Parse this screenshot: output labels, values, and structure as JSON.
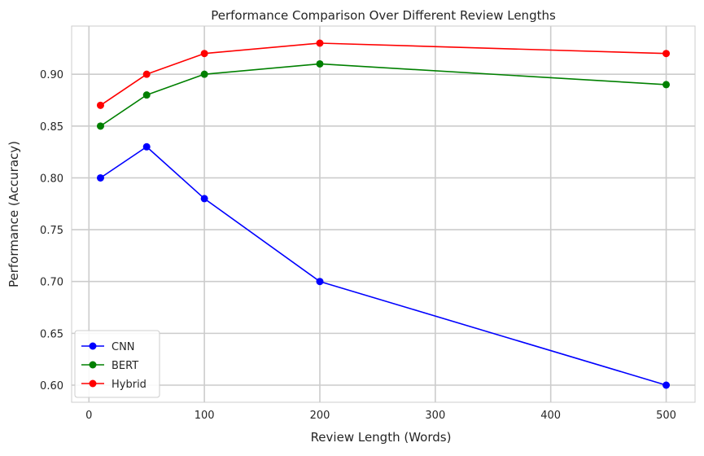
{
  "chart_data": {
    "type": "line",
    "title": "Performance Comparison Over Different Review Lengths",
    "xlabel": "Review Length (Words)",
    "ylabel": "Performance (Accuracy)",
    "x": [
      10,
      50,
      100,
      200,
      500
    ],
    "series": [
      {
        "name": "CNN",
        "color": "#0000ff",
        "values": [
          0.8,
          0.83,
          0.78,
          0.7,
          0.6
        ]
      },
      {
        "name": "BERT",
        "color": "#008000",
        "values": [
          0.85,
          0.88,
          0.9,
          0.91,
          0.89
        ]
      },
      {
        "name": "Hybrid",
        "color": "#ff0000",
        "values": [
          0.87,
          0.9,
          0.92,
          0.93,
          0.92
        ]
      }
    ],
    "xlim": [
      -15,
      525
    ],
    "ylim": [
      0.5835,
      0.9465
    ],
    "xticks": [
      0,
      100,
      200,
      300,
      400,
      500
    ],
    "yticks": [
      0.6,
      0.65,
      0.7,
      0.75,
      0.8,
      0.85,
      0.9
    ],
    "xtick_labels": [
      "0",
      "100",
      "200",
      "300",
      "400",
      "500"
    ],
    "ytick_labels": [
      "0.60",
      "0.65",
      "0.70",
      "0.75",
      "0.80",
      "0.85",
      "0.90"
    ],
    "grid": true,
    "legend_position": "lower-left",
    "colors": {
      "grid": "#cccccc",
      "axes": "#cccccc",
      "text": "#262626"
    }
  }
}
